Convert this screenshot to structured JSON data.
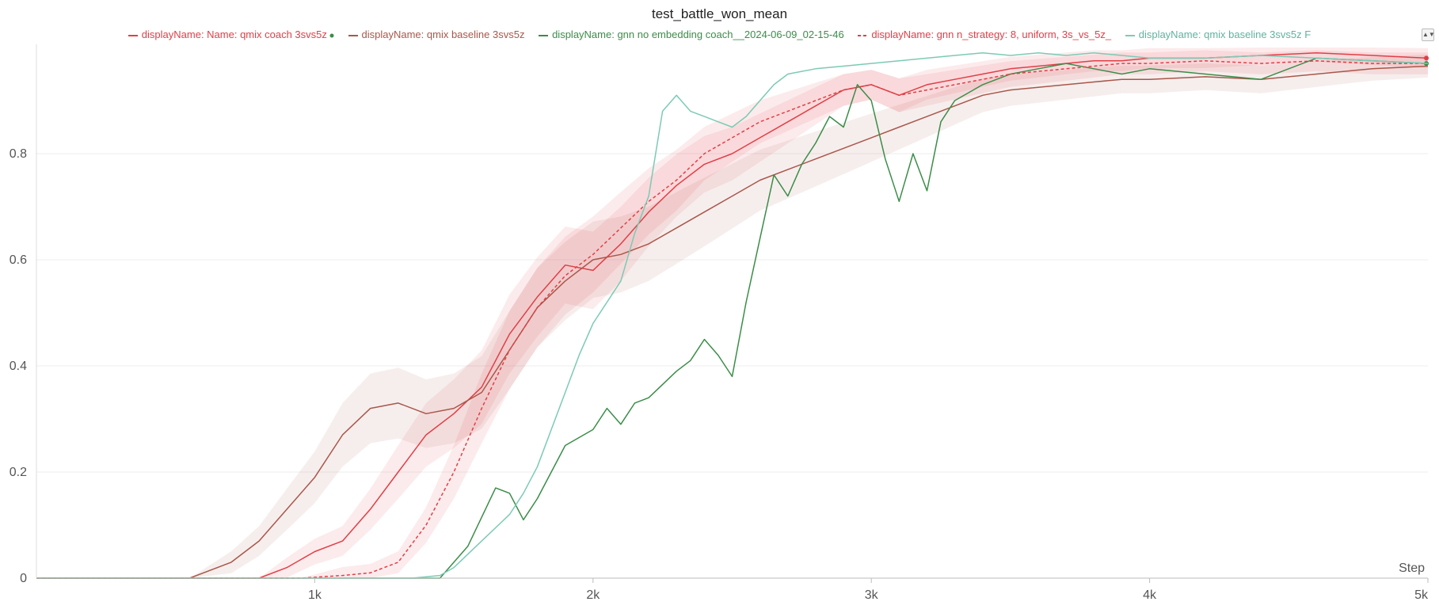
{
  "chart_data": {
    "type": "line",
    "title": "test_battle_won_mean",
    "xlabel": "Step",
    "ylabel": "",
    "xlim": [
      0,
      5000
    ],
    "ylim": [
      0,
      1
    ],
    "x_ticks": [
      1000,
      2000,
      3000,
      4000,
      5000
    ],
    "x_tick_labels": [
      "1k",
      "2k",
      "3k",
      "4k",
      "5k"
    ],
    "y_ticks": [
      0,
      0.2,
      0.4,
      0.6,
      0.8
    ],
    "y_tick_labels": [
      "0",
      "0.2",
      "0.4",
      "0.6",
      "0.8"
    ],
    "grid": "horizontal",
    "legend_position": "top",
    "series": [
      {
        "name": "displayName: Name: qmix coach 3svs5z",
        "color": "#e03f47",
        "style": "solid",
        "band": true,
        "marker": "end-dot",
        "x": [
          0,
          800,
          900,
          1000,
          1100,
          1200,
          1300,
          1400,
          1500,
          1600,
          1700,
          1800,
          1900,
          2000,
          2100,
          2200,
          2300,
          2400,
          2500,
          2600,
          2700,
          2800,
          2900,
          3000,
          3100,
          3200,
          3300,
          3400,
          3500,
          3600,
          3700,
          3800,
          3900,
          4000,
          4200,
          4400,
          4600,
          4800,
          5000
        ],
        "y": [
          0,
          0,
          0.02,
          0.05,
          0.07,
          0.13,
          0.2,
          0.27,
          0.31,
          0.36,
          0.46,
          0.53,
          0.59,
          0.58,
          0.63,
          0.69,
          0.74,
          0.78,
          0.8,
          0.83,
          0.86,
          0.89,
          0.92,
          0.93,
          0.91,
          0.93,
          0.94,
          0.95,
          0.96,
          0.965,
          0.97,
          0.975,
          0.975,
          0.98,
          0.98,
          0.985,
          0.99,
          0.985,
          0.98
        ]
      },
      {
        "name": "displayName: qmix baseline 3svs5z",
        "color": "#a9574a",
        "style": "solid",
        "band": true,
        "x": [
          0,
          550,
          700,
          800,
          900,
          1000,
          1100,
          1200,
          1300,
          1400,
          1500,
          1600,
          1700,
          1800,
          1900,
          2000,
          2100,
          2200,
          2300,
          2400,
          2500,
          2600,
          2700,
          2800,
          2900,
          3000,
          3100,
          3200,
          3300,
          3400,
          3500,
          3600,
          3700,
          3800,
          3900,
          4000,
          4200,
          4400,
          4600,
          4800,
          5000
        ],
        "y": [
          0,
          0,
          0.03,
          0.07,
          0.13,
          0.19,
          0.27,
          0.32,
          0.33,
          0.31,
          0.32,
          0.35,
          0.43,
          0.51,
          0.56,
          0.6,
          0.61,
          0.63,
          0.66,
          0.69,
          0.72,
          0.75,
          0.77,
          0.79,
          0.81,
          0.83,
          0.85,
          0.87,
          0.89,
          0.91,
          0.92,
          0.925,
          0.93,
          0.935,
          0.94,
          0.94,
          0.945,
          0.94,
          0.95,
          0.96,
          0.965
        ]
      },
      {
        "name": "displayName: gnn no embedding coach__2024-06-09_02-15-46",
        "color": "#3b8d48",
        "style": "solid",
        "band": false,
        "marker": "end-dot",
        "x": [
          0,
          1450,
          1550,
          1650,
          1700,
          1750,
          1800,
          1850,
          1900,
          2000,
          2050,
          2100,
          2150,
          2200,
          2300,
          2350,
          2400,
          2450,
          2500,
          2550,
          2600,
          2650,
          2700,
          2750,
          2800,
          2850,
          2900,
          2950,
          3000,
          3050,
          3100,
          3150,
          3200,
          3250,
          3300,
          3400,
          3500,
          3600,
          3700,
          3800,
          3900,
          4000,
          4200,
          4400,
          4600,
          4800,
          5000
        ],
        "y": [
          0,
          0,
          0.06,
          0.17,
          0.16,
          0.11,
          0.15,
          0.2,
          0.25,
          0.28,
          0.32,
          0.29,
          0.33,
          0.34,
          0.39,
          0.41,
          0.45,
          0.42,
          0.38,
          0.52,
          0.64,
          0.76,
          0.72,
          0.78,
          0.82,
          0.87,
          0.85,
          0.93,
          0.9,
          0.79,
          0.71,
          0.8,
          0.73,
          0.86,
          0.9,
          0.93,
          0.95,
          0.96,
          0.97,
          0.96,
          0.95,
          0.96,
          0.95,
          0.94,
          0.98,
          0.975,
          0.97
        ]
      },
      {
        "name": "displayName: gnn n_strategy: 8, uniform, 3s_vs_5z_",
        "color": "#e03f47",
        "style": "dashed",
        "band": true,
        "x": [
          0,
          950,
          1100,
          1200,
          1300,
          1400,
          1500,
          1600,
          1700,
          1800,
          1900,
          2000,
          2100,
          2200,
          2300,
          2400,
          2500,
          2600,
          2700,
          2800,
          2900,
          3000,
          3100,
          3200,
          3300,
          3400,
          3500,
          3600,
          3700,
          3800,
          3900,
          4000,
          4200,
          4400,
          4600,
          4800,
          5000
        ],
        "y": [
          0,
          0,
          0.005,
          0.01,
          0.03,
          0.1,
          0.2,
          0.32,
          0.43,
          0.51,
          0.57,
          0.61,
          0.66,
          0.71,
          0.75,
          0.8,
          0.83,
          0.86,
          0.88,
          0.9,
          0.92,
          0.93,
          0.91,
          0.92,
          0.93,
          0.94,
          0.95,
          0.955,
          0.96,
          0.965,
          0.97,
          0.97,
          0.975,
          0.97,
          0.975,
          0.97,
          0.97
        ]
      },
      {
        "name": "displayName: qmix baseline 3svs5z F",
        "color": "#7ccab5",
        "style": "solid",
        "band": false,
        "x": [
          0,
          1350,
          1450,
          1500,
          1600,
          1700,
          1750,
          1800,
          1850,
          1900,
          1950,
          2000,
          2050,
          2100,
          2150,
          2200,
          2250,
          2300,
          2350,
          2400,
          2450,
          2500,
          2550,
          2600,
          2650,
          2700,
          2800,
          2900,
          3000,
          3100,
          3200,
          3300,
          3400,
          3500,
          3600,
          3700,
          3800,
          3900,
          4000,
          4200,
          4400,
          4600,
          4800,
          5000
        ],
        "y": [
          0,
          0,
          0.005,
          0.02,
          0.07,
          0.12,
          0.16,
          0.21,
          0.28,
          0.35,
          0.42,
          0.48,
          0.52,
          0.56,
          0.65,
          0.72,
          0.88,
          0.91,
          0.88,
          0.87,
          0.86,
          0.85,
          0.87,
          0.9,
          0.93,
          0.95,
          0.96,
          0.965,
          0.97,
          0.975,
          0.98,
          0.985,
          0.99,
          0.985,
          0.99,
          0.985,
          0.99,
          0.985,
          0.98,
          0.98,
          0.985,
          0.98,
          0.975,
          0.97
        ]
      }
    ]
  }
}
